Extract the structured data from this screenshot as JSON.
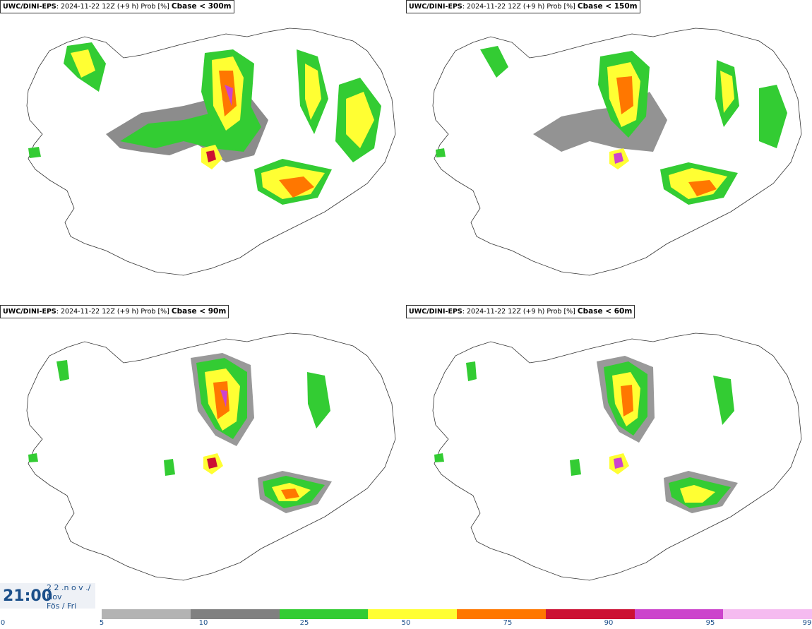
{
  "panels": [
    {
      "model": "UWC/DINI-EPS",
      "meta": ": 2024-11-22 12Z (+9 h) Prob [%]",
      "variable": "Cbase < 300m"
    },
    {
      "model": "UWC/DINI-EPS",
      "meta": ": 2024-11-22 12Z (+9 h) Prob [%]",
      "variable": "Cbase < 150m"
    },
    {
      "model": "UWC/DINI-EPS",
      "meta": ": 2024-11-22 12Z (+9 h) Prob [%]",
      "variable": "Cbase < 90m"
    },
    {
      "model": "UWC/DINI-EPS",
      "meta": ": 2024-11-22 12Z (+9 h) Prob [%]",
      "variable": "Cbase < 60m"
    }
  ],
  "valid_time": {
    "time": "21:00",
    "line1": "2 2 .n o v ./",
    "line2": "Nov",
    "line3": "Fös / Fri"
  },
  "colorbar": {
    "colors": [
      "#b3b3b3",
      "#808080",
      "#33cc33",
      "#ffff33",
      "#ff7700",
      "#cc1133",
      "#cc44cc",
      "#f5bbf0"
    ],
    "ticks": [
      "0",
      "5",
      "10",
      "25",
      "50",
      "75",
      "90",
      "95",
      "99"
    ]
  }
}
